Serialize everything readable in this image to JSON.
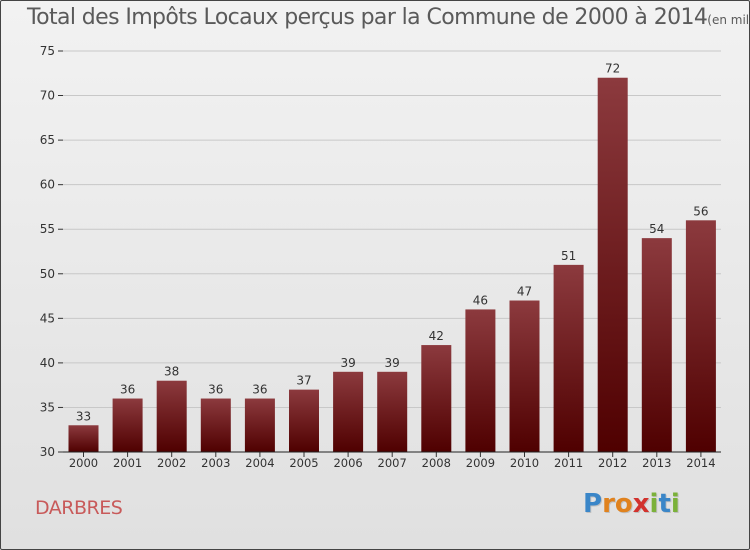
{
  "chart_data": {
    "type": "bar",
    "title": "Total des Impôts Locaux perçus par la Commune de 2000 à 2014",
    "unit_note": "(en milliers d'€)",
    "categories": [
      "2000",
      "2001",
      "2002",
      "2003",
      "2004",
      "2005",
      "2006",
      "2007",
      "2008",
      "2009",
      "2010",
      "2011",
      "2012",
      "2013",
      "2014"
    ],
    "values": [
      33,
      36,
      38,
      36,
      36,
      37,
      39,
      39,
      42,
      46,
      47,
      51,
      72,
      54,
      56
    ],
    "ylim": [
      30,
      75
    ],
    "yticks": [
      30,
      35,
      40,
      45,
      50,
      55,
      60,
      65,
      70,
      75
    ],
    "xlabel": "",
    "ylabel": "",
    "grid": true,
    "bar_color_top": "#8c3a3e",
    "bar_color_bottom": "#4f0000"
  },
  "commune": {
    "name": "DARBRES",
    "color": "#c85a5a"
  },
  "logo": {
    "letters": [
      "P",
      "r",
      "o",
      "x",
      "i",
      "t",
      "i"
    ],
    "colors": [
      "#3a86c8",
      "#e0821e",
      "#e0821e",
      "#d2322d",
      "#7bb13a",
      "#3a86c8",
      "#7bb13a"
    ]
  }
}
